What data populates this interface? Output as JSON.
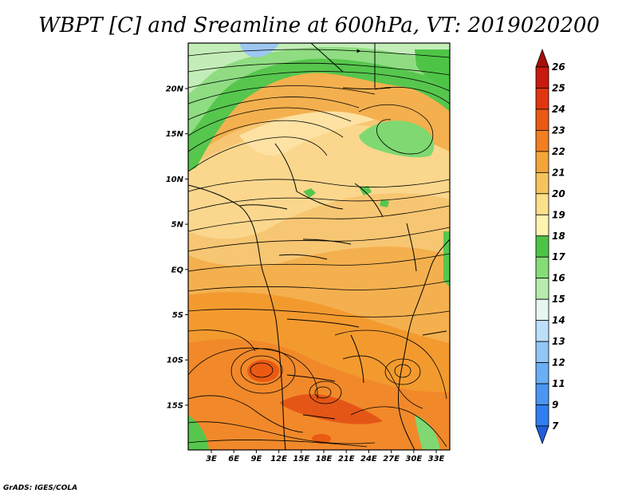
{
  "title": "WBPT [C] and Sreamline at 600hPa, VT: 2019020200",
  "credit": "GrADS: IGES/COLA",
  "map": {
    "lon_labels": [
      "3E",
      "6E",
      "9E",
      "12E",
      "15E",
      "18E",
      "21E",
      "24E",
      "27E",
      "30E",
      "33E"
    ],
    "lat_labels": [
      "20N",
      "15N",
      "10N",
      "5N",
      "EQ",
      "5S",
      "10S",
      "15S"
    ]
  },
  "colorbar": {
    "levels": [
      "7",
      "9",
      "11",
      "12",
      "13",
      "14",
      "15",
      "16",
      "17",
      "18",
      "19",
      "20",
      "21",
      "22",
      "23",
      "24",
      "25",
      "26"
    ],
    "colors": [
      "#1f5fd9",
      "#2f7ef0",
      "#4a96f2",
      "#6aaef4",
      "#92c6f7",
      "#bde0fa",
      "#e7f6f0",
      "#b8ecae",
      "#86dd78",
      "#4ec446",
      "#fff3b0",
      "#fbe08a",
      "#f7c35c",
      "#f4a53a",
      "#f17f21",
      "#ea5a13",
      "#e13510",
      "#c81a0e",
      "#a50f0a"
    ]
  }
}
